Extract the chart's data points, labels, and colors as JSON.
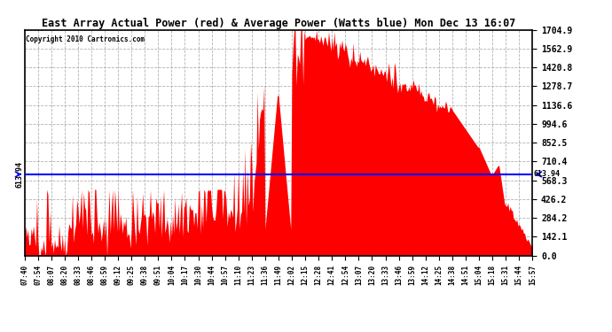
{
  "title": "East Array Actual Power (red) & Average Power (Watts blue) Mon Dec 13 16:07",
  "copyright": "Copyright 2010 Cartronics.com",
  "avg_power": 613.94,
  "ymax": 1704.9,
  "ymin": 0.0,
  "yticks": [
    0.0,
    142.1,
    284.2,
    426.2,
    568.3,
    710.4,
    852.5,
    994.6,
    1136.6,
    1278.7,
    1420.8,
    1562.9,
    1704.9
  ],
  "background_color": "#ffffff",
  "plot_bg_color": "#ffffff",
  "grid_color": "#aaaaaa",
  "fill_color": "#ff0000",
  "line_color": "#0000ff",
  "avg_label": "613.94",
  "time_labels": [
    "07:40",
    "07:54",
    "08:07",
    "08:20",
    "08:33",
    "08:46",
    "08:59",
    "09:12",
    "09:25",
    "09:38",
    "09:51",
    "10:04",
    "10:17",
    "10:30",
    "10:44",
    "10:57",
    "11:10",
    "11:23",
    "11:36",
    "11:49",
    "12:02",
    "12:15",
    "12:28",
    "12:41",
    "12:54",
    "13:07",
    "13:20",
    "13:33",
    "13:46",
    "13:59",
    "14:12",
    "14:25",
    "14:38",
    "14:51",
    "15:04",
    "15:18",
    "15:31",
    "15:44",
    "15:57"
  ],
  "power_values": [
    95,
    105,
    95,
    110,
    320,
    200,
    150,
    240,
    180,
    290,
    310,
    250,
    350,
    280,
    400,
    300,
    290,
    350,
    1210,
    200,
    1590,
    1650,
    1645,
    1630,
    1600,
    1560,
    1510,
    1460,
    1400,
    1340,
    1270,
    1190,
    1100,
    980,
    820,
    610,
    390,
    190,
    55
  ],
  "noise_seed": 42
}
